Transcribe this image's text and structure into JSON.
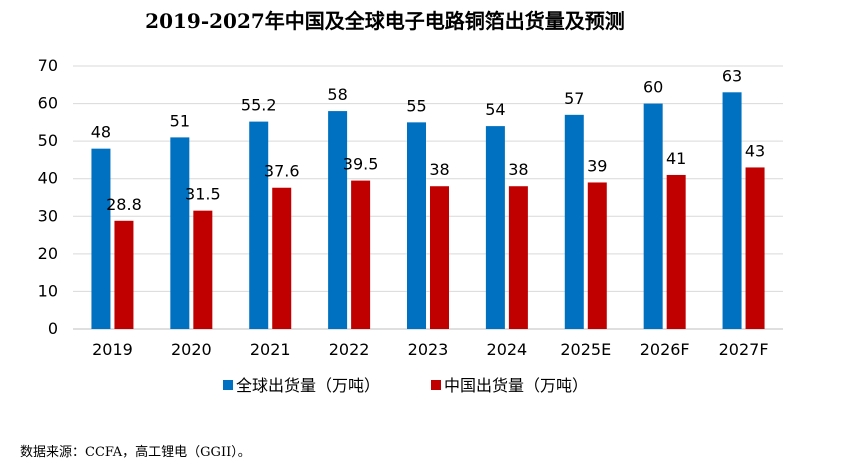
{
  "chart_data": {
    "type": "bar",
    "title": "2019-2027年中国及全球电子电路铜箔出货量及预测",
    "categories": [
      "2019",
      "2020",
      "2021",
      "2022",
      "2023",
      "2024",
      "2025E",
      "2026F",
      "2027F"
    ],
    "series": [
      {
        "name": "全球出货量（万吨）",
        "color": "#0070C0",
        "values": [
          48,
          51,
          55.2,
          58,
          55,
          54,
          57,
          60,
          63
        ],
        "labels": [
          "48",
          "51",
          "55.2",
          "58",
          "55",
          "54",
          "57",
          "60",
          "63"
        ]
      },
      {
        "name": "中国出货量（万吨）",
        "color": "#C00000",
        "values": [
          28.8,
          31.5,
          37.6,
          39.5,
          38,
          38,
          39,
          41,
          43
        ],
        "labels": [
          "28.8",
          "31.5",
          "37.6",
          "39.5",
          "38",
          "38",
          "39",
          "41",
          "43"
        ]
      }
    ],
    "ylim": [
      0,
      70
    ],
    "yticks": [
      "0",
      "10",
      "20",
      "30",
      "40",
      "50",
      "60",
      "70"
    ],
    "grid": true,
    "legend": "bottom"
  },
  "source": "数据来源：CCFA，高工锂电（GGII）。"
}
